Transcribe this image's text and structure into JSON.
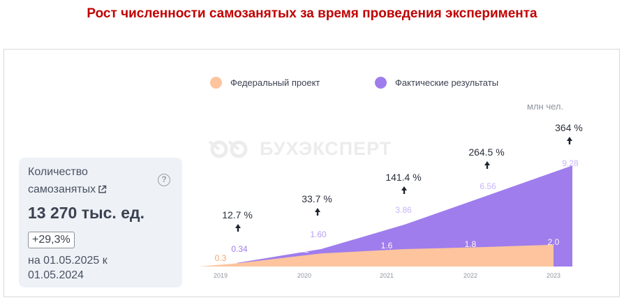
{
  "page_title": "Рост численности самозанятых за время проведения эксперимента",
  "watermark_text": "БУХЭКСПЕРТ",
  "card": {
    "label_line1": "Количество",
    "label_line2": "самозанятых",
    "link_icon": "external-link-icon",
    "help_icon": "question-circle-icon",
    "help_symbol": "?",
    "value": "13 270 тыс. ед.",
    "change": "+29,3%",
    "period_line1": "на 01.05.2025 к",
    "period_line2": "01.05.2024"
  },
  "colors": {
    "federal": "#fdc49e",
    "actual": "#9f7ded",
    "actual_label": "#ffffff",
    "actual_label_dim": "#c7b5f8",
    "federal_label": "#fffaf4",
    "title": "#c00000"
  },
  "chart_data": {
    "type": "area",
    "x": [
      "2019",
      "2020",
      "2021",
      "2022",
      "2023"
    ],
    "unit": "млн чел.",
    "legend_position": "top",
    "series": [
      {
        "name": "Федеральный проект",
        "labels": [
          "0.3",
          "1.2",
          "1.6",
          "1.8",
          "2.0"
        ],
        "values": [
          0.3,
          1.2,
          1.6,
          1.8,
          2.0
        ]
      },
      {
        "name": "Фактические результаты",
        "labels": [
          "0.34",
          "1.60",
          "3.86",
          "6.56",
          "9.28"
        ],
        "values": [
          0.34,
          1.6,
          3.86,
          6.56,
          9.28
        ]
      }
    ],
    "growth_labels": [
      "12.7 %",
      "33.7 %",
      "141.4 %",
      "264.5 %",
      "364 %"
    ],
    "grid": false
  }
}
